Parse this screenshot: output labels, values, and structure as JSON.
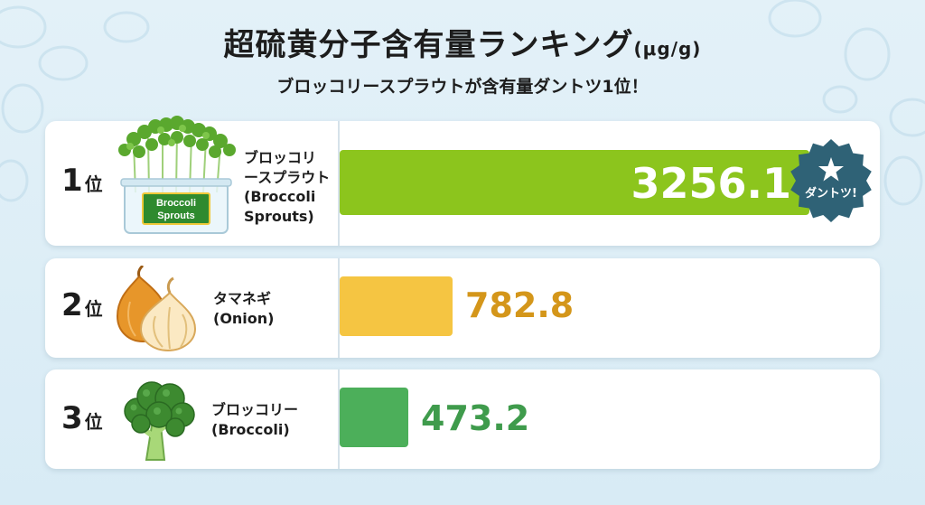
{
  "header": {
    "title": "超硫黄分子含有量ランキング",
    "unit": "(μg/g)",
    "subtitle": "ブロッコリースプラウトが含有量ダントツ1位！"
  },
  "rows": [
    {
      "rank": "1",
      "rank_suffix": "位",
      "name_line1": "ブロッコリ",
      "name_line2": "ースプラウト",
      "name_en1": "(Broccoli",
      "name_en2": "Sprouts)",
      "value_label": "3256.1",
      "box_label1": "Broccoli",
      "box_label2": "Sprouts"
    },
    {
      "rank": "2",
      "rank_suffix": "位",
      "name_line1": "タマネギ",
      "name_en1": "(Onion)",
      "value_label": "782.8"
    },
    {
      "rank": "3",
      "rank_suffix": "位",
      "name_line1": "ブロッコリー",
      "name_en1": "(Broccoli)",
      "value_label": "473.2"
    }
  ],
  "badge": {
    "label": "ダントツ!",
    "icon": "star-icon"
  },
  "colors": {
    "bar1": "#8cc51d",
    "bar2": "#f5c542",
    "bar3": "#4caf5a",
    "value1": "#ffffff",
    "value2": "#d4961a",
    "value3": "#3f9b4c",
    "badge": "#2f6276"
  },
  "chart_data": {
    "type": "bar",
    "orientation": "horizontal",
    "title": "超硫黄分子含有量ランキング",
    "unit": "(μg/g)",
    "categories": [
      "ブロッコリースプラウト (Broccoli Sprouts)",
      "タマネギ (Onion)",
      "ブロッコリー (Broccoli)"
    ],
    "values": [
      3256.1,
      782.8,
      473.2
    ],
    "xlim": [
      0,
      3256.1
    ],
    "grid": false,
    "legend": "none"
  }
}
